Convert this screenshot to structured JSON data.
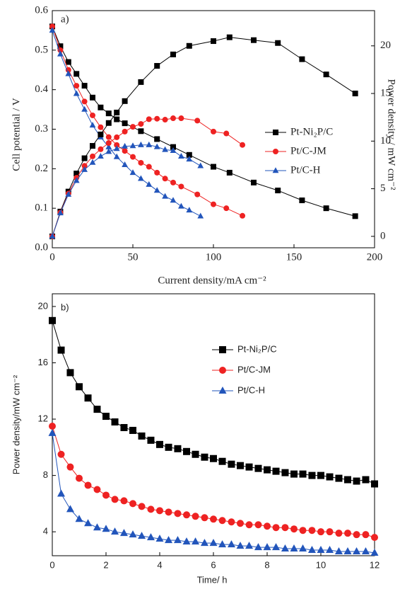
{
  "chart_data": [
    {
      "type": "line",
      "label": "a)",
      "xlabel": "Current density/mA cm⁻²",
      "ylabel": "Cell potential / V",
      "y2label": "Power density / mW cm⁻²",
      "xlim": [
        0,
        200
      ],
      "xticks": [
        0,
        50,
        100,
        150,
        200
      ],
      "ylim": [
        0,
        0.6
      ],
      "yticks": [
        {
          "value": 0,
          "label": "0.0"
        },
        0.1,
        0.2,
        0.3,
        0.4,
        0.5,
        0.6
      ],
      "y2lim": [
        -1.2,
        23.7
      ],
      "y2ticks": [
        0,
        5,
        10,
        15,
        20
      ],
      "series": [
        {
          "name": "Pt-Ni₂P/C",
          "color": "#000000",
          "marker": "square",
          "x": [
            0,
            5,
            10,
            15,
            20,
            25,
            30,
            35,
            40,
            45,
            55,
            65,
            75,
            85,
            100,
            110,
            125,
            140,
            155,
            170,
            188
          ],
          "values": [
            0.56,
            0.51,
            0.47,
            0.44,
            0.41,
            0.38,
            0.355,
            0.34,
            0.325,
            0.315,
            0.295,
            0.275,
            0.255,
            0.235,
            0.205,
            0.19,
            0.165,
            0.145,
            0.12,
            0.1,
            0.08
          ]
        },
        {
          "name": "Pt/C-JM",
          "color": "#ee2222",
          "marker": "circle",
          "x": [
            0,
            5,
            10,
            15,
            20,
            25,
            30,
            35,
            40,
            45,
            50,
            55,
            60,
            65,
            70,
            75,
            80,
            90,
            100,
            108,
            118
          ],
          "values": [
            0.56,
            0.5,
            0.45,
            0.41,
            0.37,
            0.335,
            0.305,
            0.28,
            0.26,
            0.245,
            0.23,
            0.215,
            0.205,
            0.19,
            0.175,
            0.165,
            0.155,
            0.135,
            0.11,
            0.1,
            0.081
          ]
        },
        {
          "name": "Pt/C-H",
          "color": "#2255bb",
          "marker": "triangle",
          "x": [
            0,
            5,
            10,
            15,
            20,
            25,
            30,
            35,
            40,
            45,
            50,
            55,
            60,
            65,
            70,
            75,
            80,
            85,
            92
          ],
          "values": [
            0.55,
            0.49,
            0.44,
            0.39,
            0.35,
            0.31,
            0.28,
            0.255,
            0.23,
            0.21,
            0.19,
            0.175,
            0.16,
            0.145,
            0.13,
            0.12,
            0.105,
            0.095,
            0.08
          ]
        },
        {
          "axis": "y2",
          "color": "#000000",
          "marker": "square",
          "x": [
            0,
            5,
            10,
            15,
            20,
            25,
            30,
            35,
            40,
            45,
            55,
            65,
            75,
            85,
            100,
            110,
            125,
            140,
            155,
            170,
            188
          ],
          "values": [
            0,
            2.6,
            4.7,
            6.6,
            8.2,
            9.5,
            10.7,
            11.9,
            13,
            14.2,
            16.2,
            17.9,
            19.1,
            20,
            20.5,
            20.9,
            20.6,
            20.3,
            18.6,
            17,
            15
          ]
        },
        {
          "axis": "y2",
          "color": "#ee2222",
          "marker": "circle",
          "x": [
            0,
            5,
            10,
            15,
            20,
            25,
            30,
            35,
            40,
            45,
            50,
            55,
            60,
            65,
            70,
            75,
            80,
            90,
            100,
            108,
            118
          ],
          "values": [
            0,
            2.5,
            4.5,
            6.15,
            7.4,
            8.4,
            9.15,
            9.8,
            10.4,
            11,
            11.5,
            11.8,
            12.3,
            12.35,
            12.25,
            12.4,
            12.4,
            12.15,
            11,
            10.8,
            9.6
          ]
        },
        {
          "axis": "y2",
          "color": "#2255bb",
          "marker": "triangle",
          "x": [
            0,
            5,
            10,
            15,
            20,
            25,
            30,
            35,
            40,
            45,
            50,
            55,
            60,
            65,
            70,
            75,
            80,
            85,
            92
          ],
          "values": [
            0,
            2.45,
            4.4,
            5.85,
            7,
            7.75,
            8.4,
            8.9,
            9.2,
            9.45,
            9.5,
            9.6,
            9.6,
            9.4,
            9.1,
            9,
            8.4,
            8.1,
            7.4
          ]
        }
      ]
    },
    {
      "type": "line",
      "label": "b)",
      "xlabel": "Time/ h",
      "ylabel": "Power density/mW cm⁻²",
      "xlim": [
        0,
        12
      ],
      "xticks": [
        0,
        2,
        4,
        6,
        8,
        10,
        12
      ],
      "ylim": [
        2.3,
        20.9
      ],
      "yticks": [
        4,
        8,
        12,
        16,
        20
      ],
      "series": [
        {
          "name": "Pt-Ni₂P/C",
          "color": "#000000",
          "marker": "square",
          "x": [
            0,
            0.33,
            0.67,
            1,
            1.33,
            1.67,
            2,
            2.33,
            2.67,
            3,
            3.33,
            3.67,
            4,
            4.33,
            4.67,
            5,
            5.33,
            5.67,
            6,
            6.33,
            6.67,
            7,
            7.33,
            7.67,
            8,
            8.33,
            8.67,
            9,
            9.33,
            9.67,
            10,
            10.33,
            10.67,
            11,
            11.33,
            11.67,
            12
          ],
          "values": [
            19,
            16.9,
            15.3,
            14.3,
            13.5,
            12.7,
            12.2,
            11.8,
            11.4,
            11.2,
            10.8,
            10.5,
            10.2,
            10,
            9.9,
            9.7,
            9.5,
            9.3,
            9.2,
            9,
            8.8,
            8.7,
            8.6,
            8.5,
            8.4,
            8.3,
            8.2,
            8.1,
            8.1,
            8,
            8,
            7.9,
            7.8,
            7.7,
            7.6,
            7.7,
            7.4
          ]
        },
        {
          "name": "Pt/C-JM",
          "color": "#ee2222",
          "marker": "circle",
          "x": [
            0,
            0.33,
            0.67,
            1,
            1.33,
            1.67,
            2,
            2.33,
            2.67,
            3,
            3.33,
            3.67,
            4,
            4.33,
            4.67,
            5,
            5.33,
            5.67,
            6,
            6.33,
            6.67,
            7,
            7.33,
            7.67,
            8,
            8.33,
            8.67,
            9,
            9.33,
            9.67,
            10,
            10.33,
            10.67,
            11,
            11.33,
            11.67,
            12
          ],
          "values": [
            11.5,
            9.5,
            8.6,
            7.8,
            7.3,
            7,
            6.6,
            6.3,
            6.2,
            6,
            5.8,
            5.6,
            5.5,
            5.4,
            5.3,
            5.2,
            5.1,
            5,
            4.9,
            4.8,
            4.7,
            4.6,
            4.5,
            4.5,
            4.4,
            4.3,
            4.3,
            4.2,
            4.1,
            4.1,
            4,
            4,
            3.9,
            3.9,
            3.8,
            3.8,
            3.6
          ]
        },
        {
          "name": "Pt/C-H",
          "color": "#2255bb",
          "marker": "triangle",
          "x": [
            0,
            0.33,
            0.67,
            1,
            1.33,
            1.67,
            2,
            2.33,
            2.67,
            3,
            3.33,
            3.67,
            4,
            4.33,
            4.67,
            5,
            5.33,
            5.67,
            6,
            6.33,
            6.67,
            7,
            7.33,
            7.67,
            8,
            8.33,
            8.67,
            9,
            9.33,
            9.67,
            10,
            10.33,
            10.67,
            11,
            11.33,
            11.67,
            12
          ],
          "values": [
            11,
            6.7,
            5.6,
            4.9,
            4.6,
            4.3,
            4.2,
            4,
            3.9,
            3.8,
            3.7,
            3.6,
            3.5,
            3.4,
            3.4,
            3.3,
            3.3,
            3.2,
            3.2,
            3.1,
            3.1,
            3,
            3,
            2.9,
            2.9,
            2.9,
            2.8,
            2.8,
            2.8,
            2.7,
            2.7,
            2.7,
            2.6,
            2.6,
            2.6,
            2.6,
            2.5
          ]
        }
      ]
    }
  ]
}
